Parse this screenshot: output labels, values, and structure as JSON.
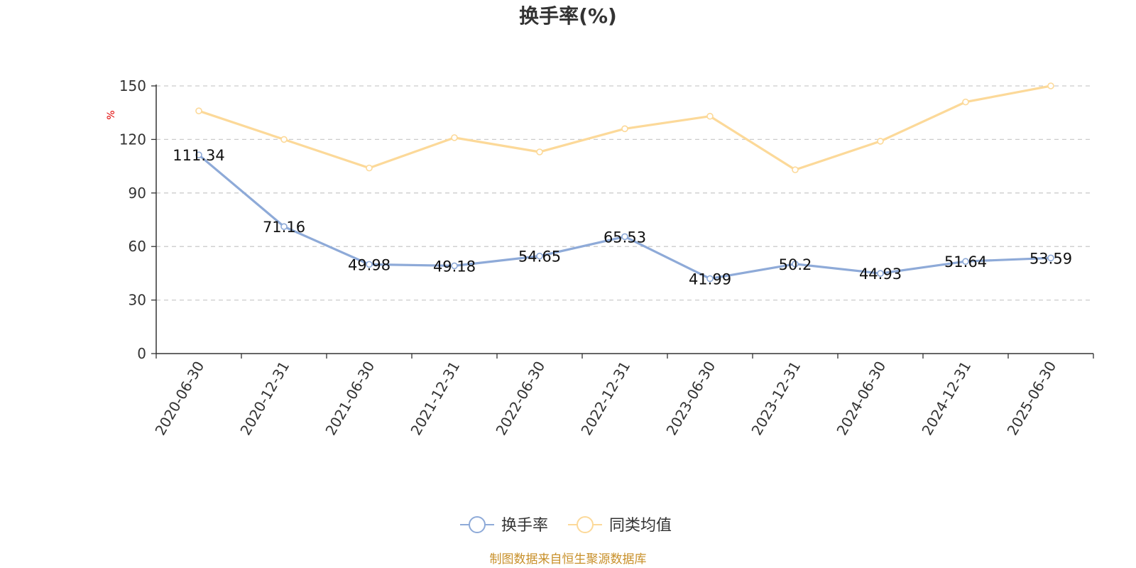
{
  "chart_data": {
    "type": "line",
    "title": "换手率(%)",
    "ylabel": "%",
    "ylim": [
      0,
      150
    ],
    "yticks": [
      0,
      30,
      60,
      90,
      120,
      150
    ],
    "grid": true,
    "legend_position": "bottom",
    "categories": [
      "2020-06-30",
      "2020-12-31",
      "2021-06-30",
      "2021-12-31",
      "2022-06-30",
      "2022-12-31",
      "2023-06-30",
      "2023-12-31",
      "2024-06-30",
      "2024-12-31",
      "2025-06-30"
    ],
    "series": [
      {
        "name": "换手率",
        "color": "#8eaad8",
        "values": [
          111.34,
          71.16,
          49.98,
          49.18,
          54.65,
          65.53,
          41.99,
          50.2,
          44.93,
          51.64,
          53.59
        ],
        "labels": [
          "111.34",
          "71.16",
          "49.98",
          "49.18",
          "54.65",
          "65.53",
          "41.99",
          "50.2",
          "44.93",
          "51.64",
          "53.59"
        ]
      },
      {
        "name": "同类均值",
        "color": "#fcd999",
        "values": [
          136,
          120,
          104,
          121,
          113,
          126,
          133,
          103,
          119,
          141,
          150
        ]
      }
    ],
    "source": "制图数据来自恒生聚源数据库"
  }
}
